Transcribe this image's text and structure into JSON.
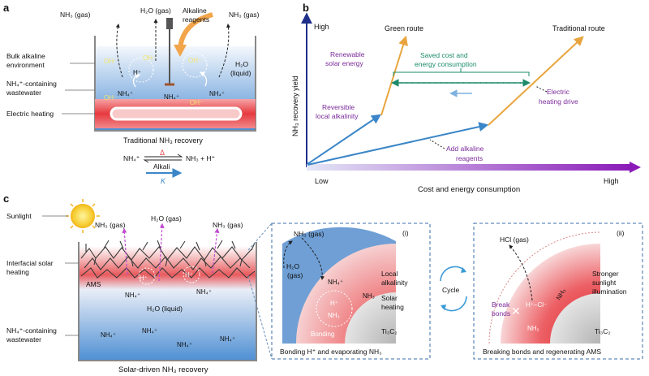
{
  "panel_a": {
    "letter": "a",
    "nh3_gas_left": "NH₃ (gas)",
    "h2o_gas": "H₂O (gas)",
    "alkaline_line1": "Alkaline",
    "alkaline_line2": "reagents",
    "nh3_gas_right": "NH₃ (gas)",
    "bulk_line1": "Bulk alkaline",
    "bulk_line2": "environment",
    "nh4_line1": "NH₄⁺-containing",
    "nh4_line2": "wastewater",
    "electric_heating": "Electric heating",
    "h2o_liquid_1": "H₂O",
    "h2o_liquid_2": "(liquid)",
    "oh": "OH⁻",
    "h_plus": "H⁺",
    "nh4_plus": "NH₄⁺",
    "caption": "Traditional NH₃ recovery",
    "eq_left": "NH₄⁺",
    "eq_right": "NH₃ + H⁺",
    "eq_delta": "Δ",
    "eq_alkali": "Alkali",
    "eq_k": "K"
  },
  "panel_b": {
    "letter": "b",
    "high_y": "High",
    "low": "Low",
    "high_x": "High",
    "y_axis": "NH₃ recovery yield",
    "x_axis": "Cost and energy consumption",
    "green_route": "Green route",
    "traditional_route": "Traditional route",
    "renewable_1": "Renewable",
    "renewable_2": "solar energy",
    "saved_1": "Saved cost and",
    "saved_2": "energy consumption",
    "reversible_1": "Reversible",
    "reversible_2": "local alkalinity",
    "electric_1": "Electric",
    "electric_2": "heating drive",
    "add_1": "Add alkaline",
    "add_2": "reagents",
    "colors": {
      "purple": "#7a2a9a",
      "green": "#1a8a6a",
      "blue": "#3a86c8",
      "orange": "#e8a53e"
    }
  },
  "panel_c": {
    "letter": "c",
    "sunlight": "Sunlight",
    "nh3_gas": "NH₃ (gas)",
    "h2o_gas": "H₂O (gas)",
    "interfacial_1": "Interfacial solar",
    "interfacial_2": "heating",
    "ams": "AMS",
    "h_plus": "H⁺",
    "nh4_plus": "NH₄⁺",
    "h2o_liquid": "H₂O (liquid)",
    "nh4_line1": "NH₄⁺-containing",
    "nh4_line2": "wastewater",
    "caption": "Solar-driven NH₃ recovery",
    "sub_i": {
      "tag": "(i)",
      "nh3_gas": "NH₃ (gas)",
      "h2o_1": "H₂O",
      "h2o_2": "(gas)",
      "nh4": "NH₄⁺",
      "h": "H⁺",
      "nh3": "NH₃",
      "bonding": "Bonding",
      "local_1": "Local",
      "local_2": "alkalinity",
      "solar_1": "Solar",
      "solar_2": "heating",
      "ti3c2": "Ti₃C₂",
      "caption": "Bonding H⁺ and evaporating NH₃"
    },
    "cycle": "Cycle",
    "sub_ii": {
      "tag": "(ii)",
      "hcl": "HCl (gas)",
      "hcl_pair": "H⁺–Cl⁻",
      "break_1": "Break",
      "break_2": "bonds",
      "nh3": "NH₃",
      "nh2": "NH₂",
      "stronger_1": "Stronger",
      "stronger_2": "sunlight",
      "stronger_3": "illumination",
      "ti3c2": "Ti₃C₂",
      "caption": "Breaking bonds and regenerating AMS"
    }
  }
}
